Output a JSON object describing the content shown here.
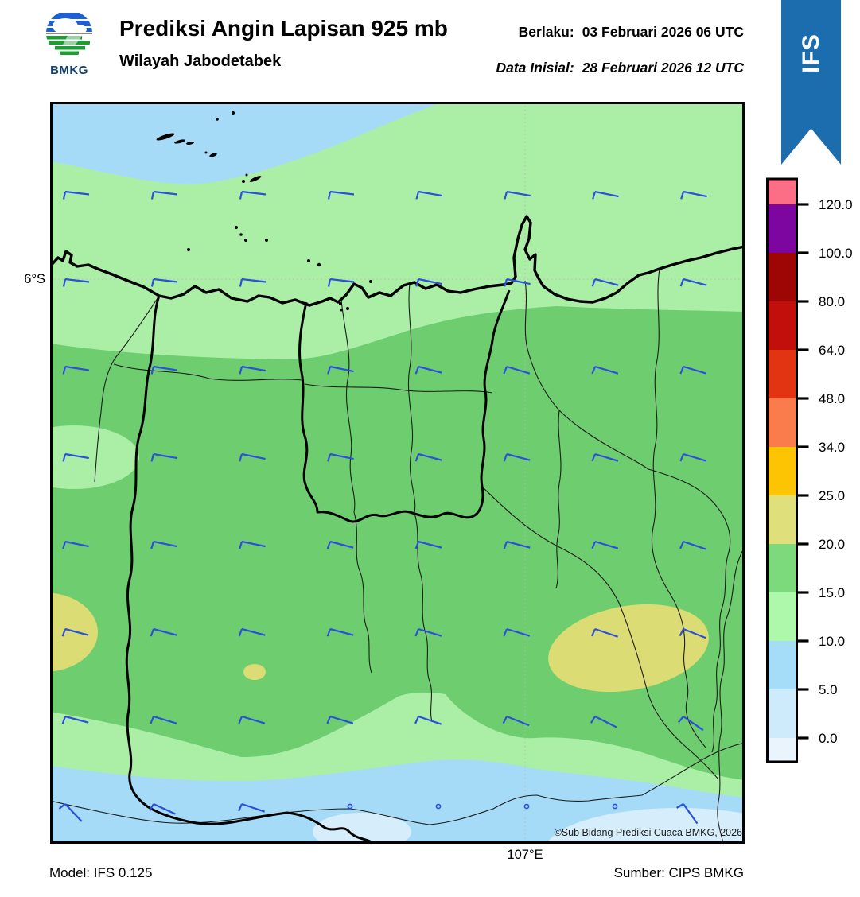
{
  "header": {
    "title": "Prediksi Angin Lapisan 925 mb",
    "subtitle": "Wilayah Jabodetabek",
    "logo_label": "BMKG",
    "valid_label": "Berlaku:",
    "valid_value": "03 Februari 2026 06 UTC",
    "init_label": "Data Inisial:",
    "init_value": "28 Februari 2026 12 UTC",
    "ribbon_label": "IFS"
  },
  "map": {
    "lat_label": "6°S",
    "lon_label": "107°E",
    "copyright": "©Sub Bidang Prediksi Cuaca BMKG, 2026"
  },
  "footer": {
    "model": "Model: IFS 0.125",
    "source": "Sumber: CIPS BMKG"
  },
  "colors": {
    "green_light": "#abefa7",
    "green_mid": "#6ecd6f",
    "blue_band": "#a6dbf8",
    "blue_pale": "#d6edfc",
    "khaki": "#dcdc74",
    "wind_barb": "#2a50dd",
    "ribbon_blue": "#1b6dae",
    "grid_dots": "#b9b9a9"
  },
  "colorbar": {
    "unit_values": [
      120.0,
      100.0,
      80.0,
      64.0,
      48.0,
      34.0,
      25.0,
      20.0,
      15.0,
      10.0,
      5.0,
      0.0
    ],
    "labels": [
      "120.0",
      "100.0",
      "80.0",
      "64.0",
      "48.0",
      "34.0",
      "25.0",
      "20.0",
      "15.0",
      "10.0",
      "5.0",
      "0.0"
    ],
    "segment_colors": [
      "#fb6e85",
      "#7d06a0",
      "#9e0505",
      "#c20f0c",
      "#e23413",
      "#fa7c4d",
      "#fdc403",
      "#dfdf7b",
      "#7cd97c",
      "#adf8aa",
      "#a5dcf8",
      "#cdebfb",
      "#e9f4fc"
    ]
  },
  "wind": {
    "cols": [
      19,
      130,
      241,
      352,
      463,
      574,
      685,
      796
    ],
    "rows": [
      113,
      223,
      333,
      443,
      553,
      663,
      773,
      883
    ],
    "angles": [
      [
        0,
        0,
        0,
        0,
        3,
        3,
        5,
        5
      ],
      [
        0,
        0,
        0,
        0,
        5,
        5,
        8,
        8
      ],
      [
        2,
        2,
        3,
        5,
        8,
        10,
        10,
        10
      ],
      [
        3,
        3,
        5,
        5,
        8,
        8,
        10,
        10
      ],
      [
        5,
        5,
        5,
        8,
        8,
        8,
        10,
        12
      ],
      [
        8,
        8,
        8,
        8,
        10,
        10,
        12,
        15
      ],
      [
        8,
        10,
        10,
        10,
        12,
        15,
        20,
        28
      ],
      [
        40,
        18,
        12,
        null,
        null,
        null,
        null,
        48
      ]
    ]
  }
}
